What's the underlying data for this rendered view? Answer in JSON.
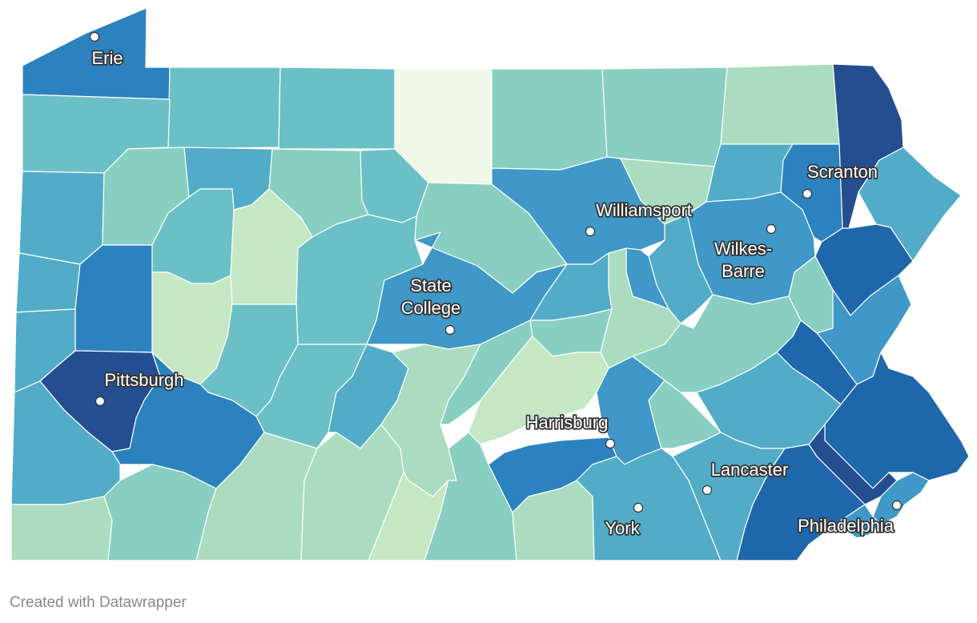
{
  "map": {
    "colors": {
      "c1": "#f0f8e8",
      "c2": "#c6e7c4",
      "c3": "#abdcc0",
      "c4": "#88cfc2",
      "c5": "#6bc0c6",
      "c6": "#52acc8",
      "c7": "#3f98c7",
      "c8": "#2b82bf",
      "c9": "#1f67ab",
      "c10": "#244e90"
    },
    "cities": [
      {
        "name": "Erie",
        "lines": [
          "Erie"
        ]
      },
      {
        "name": "Scranton",
        "lines": [
          "Scranton"
        ]
      },
      {
        "name": "Williamsport",
        "lines": [
          "Williamsport"
        ]
      },
      {
        "name": "Wilkes-Barre",
        "lines": [
          "Wilkes-",
          "Barre"
        ]
      },
      {
        "name": "State College",
        "lines": [
          "State",
          "College"
        ]
      },
      {
        "name": "Pittsburgh",
        "lines": [
          "Pittsburgh"
        ]
      },
      {
        "name": "Harrisburg",
        "lines": [
          "Harrisburg"
        ]
      },
      {
        "name": "Lancaster",
        "lines": [
          "Lancaster"
        ]
      },
      {
        "name": "York",
        "lines": [
          "York"
        ]
      },
      {
        "name": "Philadelphia",
        "lines": [
          "Philadelphia"
        ]
      }
    ]
  },
  "footer": {
    "credit": "Created with Datawrapper"
  }
}
